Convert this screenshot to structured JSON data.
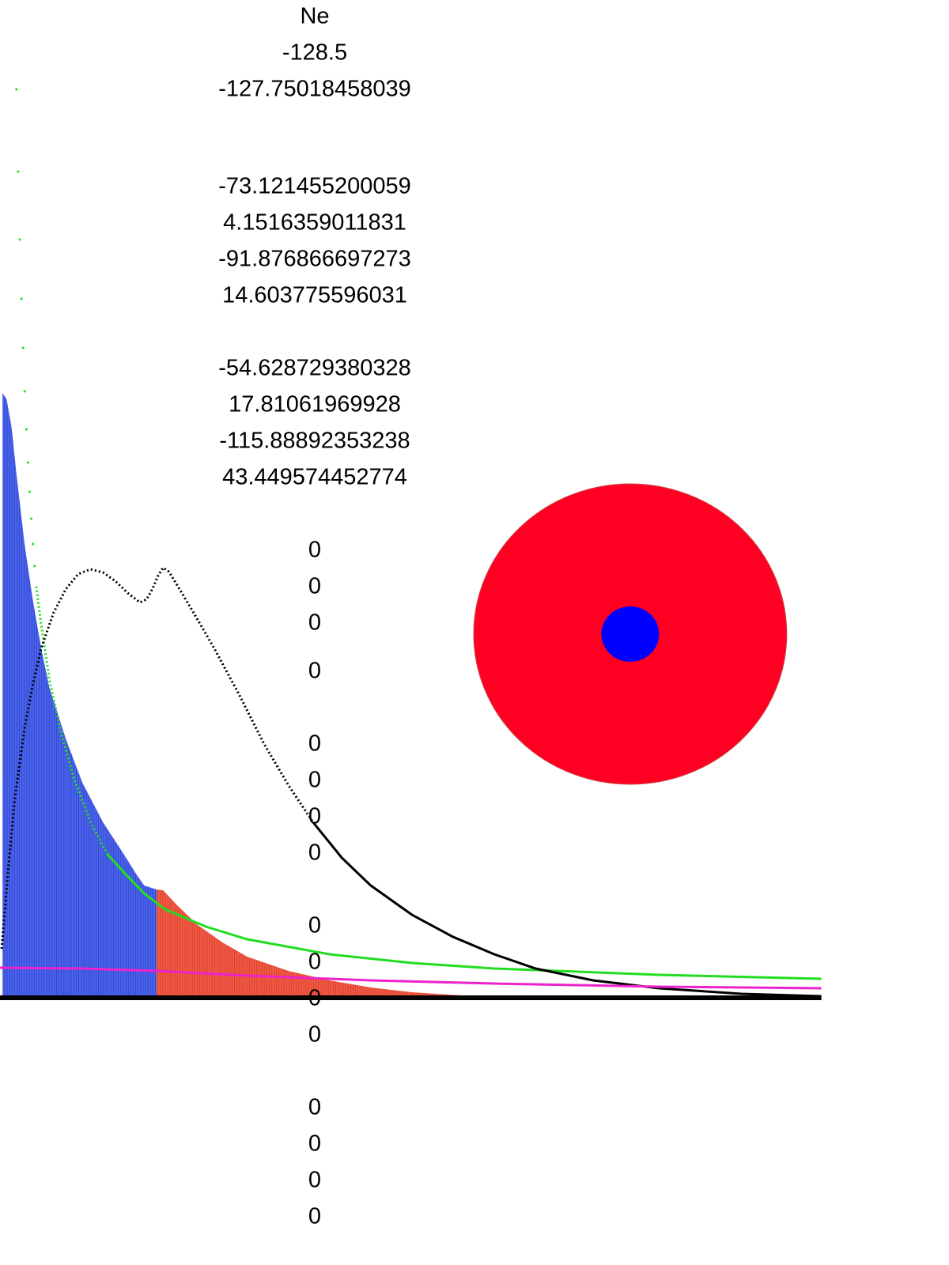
{
  "element": "Ne",
  "energies": [
    -128.5,
    -127.75018458039,
    -73.121455200059,
    4.1516359011831,
    -91.876866697273,
    14.603775596031,
    -54.628729380328,
    17.81061969928,
    -115.88892353238,
    43.449574452774
  ],
  "occupations": [
    0,
    0,
    0,
    0,
    0,
    0,
    0,
    0,
    0,
    0,
    0,
    0,
    0,
    0,
    0,
    0
  ]
}
